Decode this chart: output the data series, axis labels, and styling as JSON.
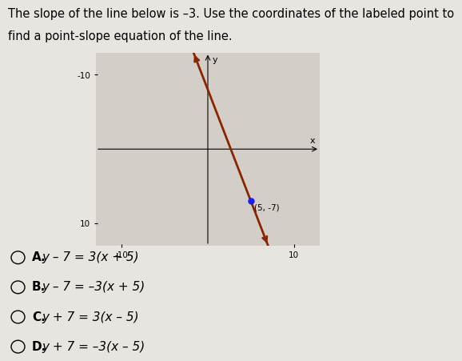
{
  "title_line1": "The slope of the line below is –3. Use the coordinates of the labeled point to",
  "title_line2": "find a point-slope equation of the line.",
  "background_color": "#e8e4e0",
  "graph_bg_color": "#d4cec9",
  "slope": -3,
  "point": [
    5,
    -7
  ],
  "point_label": "(5, -7)",
  "axis_limit": 13,
  "line_color": "#8B2500",
  "point_color": "#1a1aff",
  "choices": [
    {
      "letter": "A",
      "text": "y – 7 = 3(x + 5)"
    },
    {
      "letter": "B",
      "text": "y – 7 = –3(x + 5)"
    },
    {
      "letter": "C",
      "text": "y + 7 = 3(x – 5)"
    },
    {
      "letter": "D",
      "text": "y + 7 = –3(x – 5)"
    }
  ],
  "choice_font_size": 11,
  "title_font_size": 10.5
}
